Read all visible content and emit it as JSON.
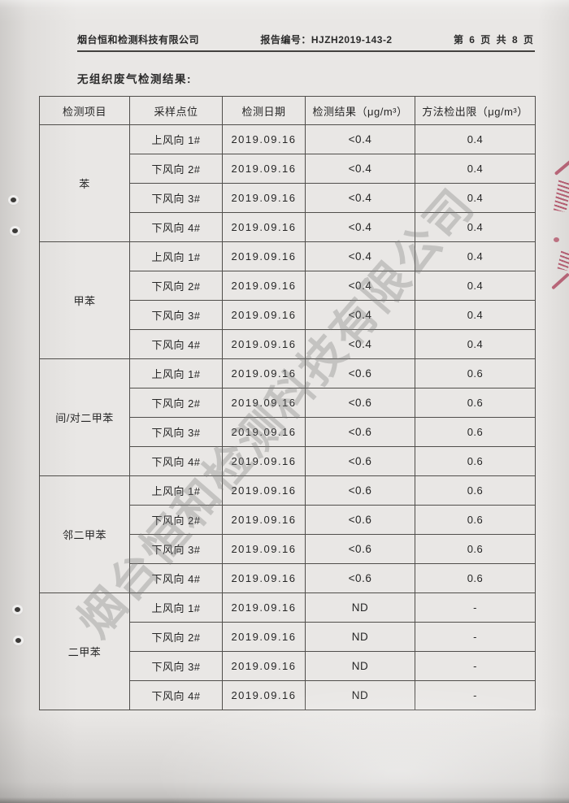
{
  "page": {
    "header": {
      "company": "烟台恒和检测科技有限公司",
      "report_no_label": "报告编号：",
      "report_no": "HJZH2019-143-2",
      "page_info": "第 6 页 共 8 页"
    },
    "section_title": "无组织废气检测结果:",
    "watermark": "烟台恒和检测科技有限公司",
    "stamp_color": "#b1435d"
  },
  "table": {
    "columns": [
      "检测项目",
      "采样点位",
      "检测日期",
      "检测结果（μg/m³）",
      "方法检出限（μg/m³）"
    ],
    "groups": [
      {
        "item": "苯",
        "rows": [
          {
            "point": "上风向 1#",
            "date": "2019.09.16",
            "result": "<0.4",
            "limit": "0.4"
          },
          {
            "point": "下风向 2#",
            "date": "2019.09.16",
            "result": "<0.4",
            "limit": "0.4"
          },
          {
            "point": "下风向 3#",
            "date": "2019.09.16",
            "result": "<0.4",
            "limit": "0.4"
          },
          {
            "point": "下风向 4#",
            "date": "2019.09.16",
            "result": "<0.4",
            "limit": "0.4"
          }
        ]
      },
      {
        "item": "甲苯",
        "rows": [
          {
            "point": "上风向 1#",
            "date": "2019.09.16",
            "result": "<0.4",
            "limit": "0.4"
          },
          {
            "point": "下风向 2#",
            "date": "2019.09.16",
            "result": "<0.4",
            "limit": "0.4"
          },
          {
            "point": "下风向 3#",
            "date": "2019.09.16",
            "result": "<0.4",
            "limit": "0.4"
          },
          {
            "point": "下风向 4#",
            "date": "2019.09.16",
            "result": "<0.4",
            "limit": "0.4"
          }
        ]
      },
      {
        "item": "间/对二甲苯",
        "rows": [
          {
            "point": "上风向 1#",
            "date": "2019.09.16",
            "result": "<0.6",
            "limit": "0.6"
          },
          {
            "point": "下风向 2#",
            "date": "2019.09.16",
            "result": "<0.6",
            "limit": "0.6"
          },
          {
            "point": "下风向 3#",
            "date": "2019.09.16",
            "result": "<0.6",
            "limit": "0.6"
          },
          {
            "point": "下风向 4#",
            "date": "2019.09.16",
            "result": "<0.6",
            "limit": "0.6"
          }
        ]
      },
      {
        "item": "邻二甲苯",
        "rows": [
          {
            "point": "上风向 1#",
            "date": "2019.09.16",
            "result": "<0.6",
            "limit": "0.6"
          },
          {
            "point": "下风向 2#",
            "date": "2019.09.16",
            "result": "<0.6",
            "limit": "0.6"
          },
          {
            "point": "下风向 3#",
            "date": "2019.09.16",
            "result": "<0.6",
            "limit": "0.6"
          },
          {
            "point": "下风向 4#",
            "date": "2019.09.16",
            "result": "<0.6",
            "limit": "0.6"
          }
        ]
      },
      {
        "item": "二甲苯",
        "rows": [
          {
            "point": "上风向 1#",
            "date": "2019.09.16",
            "result": "ND",
            "limit": "-"
          },
          {
            "point": "下风向 2#",
            "date": "2019.09.16",
            "result": "ND",
            "limit": "-"
          },
          {
            "point": "下风向 3#",
            "date": "2019.09.16",
            "result": "ND",
            "limit": "-"
          },
          {
            "point": "下风向 4#",
            "date": "2019.09.16",
            "result": "ND",
            "limit": "-"
          }
        ]
      }
    ]
  }
}
